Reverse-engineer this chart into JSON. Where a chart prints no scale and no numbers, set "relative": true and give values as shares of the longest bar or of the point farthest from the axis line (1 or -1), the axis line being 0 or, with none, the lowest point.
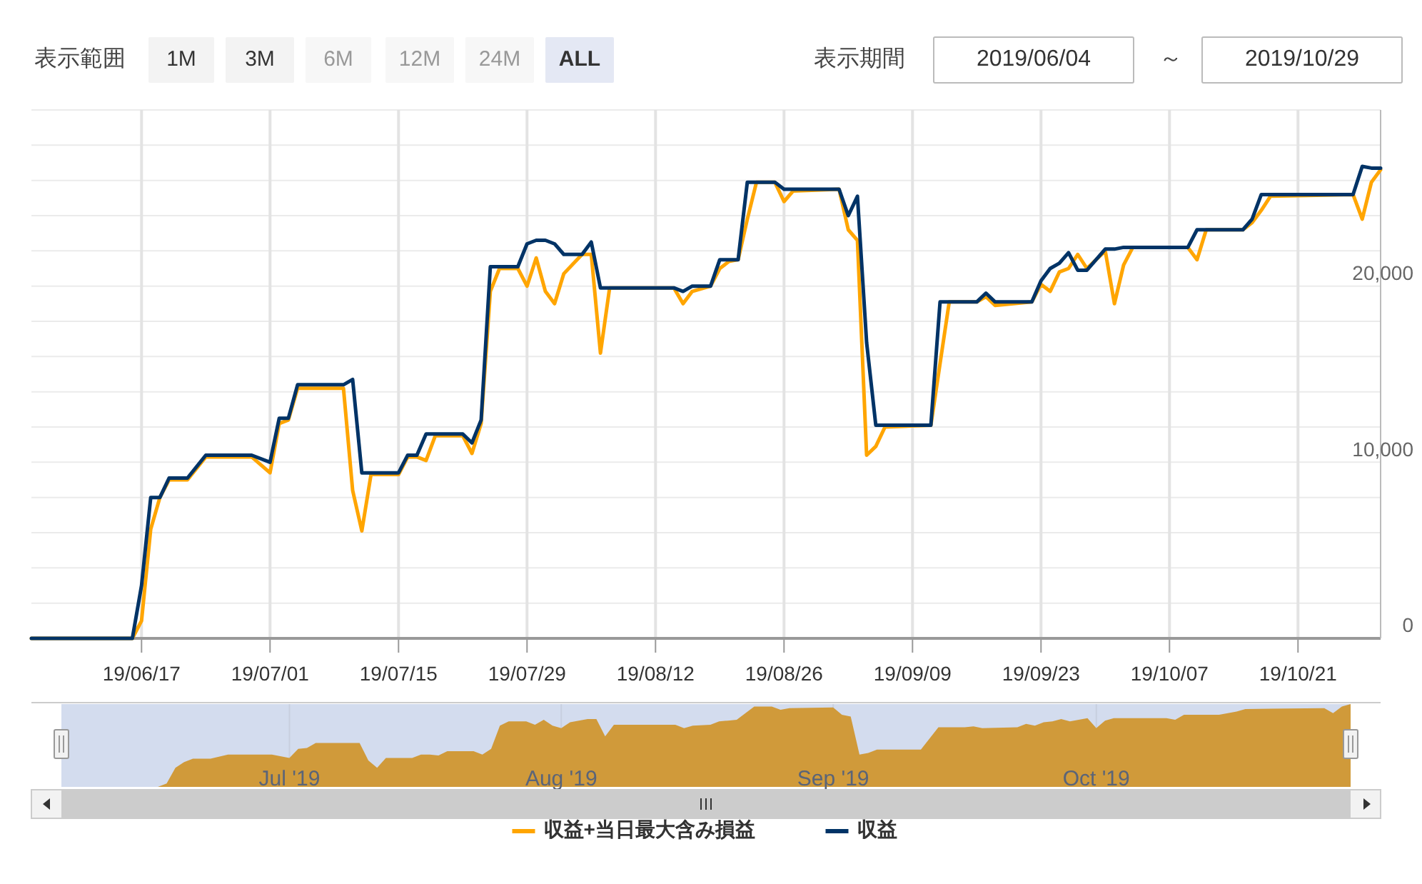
{
  "chart_data": [
    {
      "type": "line",
      "annotations": [
        "表示範囲",
        "1M",
        "3M",
        "6M",
        "12M",
        "24M",
        "ALL",
        "表示期間",
        "2019/06/04",
        "～",
        "2019/10/29"
      ],
      "xlim": [
        "2019-06-05",
        "2019-10-30"
      ],
      "xticks": [
        {
          "value": "2019-06-17",
          "label": "19/06/17"
        },
        {
          "value": "2019-07-01",
          "label": "19/07/01"
        },
        {
          "value": "2019-07-15",
          "label": "19/07/15"
        },
        {
          "value": "2019-07-29",
          "label": "19/07/29"
        },
        {
          "value": "2019-08-12",
          "label": "19/08/12"
        },
        {
          "value": "2019-08-26",
          "label": "19/08/26"
        },
        {
          "value": "2019-09-09",
          "label": "19/09/09"
        },
        {
          "value": "2019-09-23",
          "label": "19/09/23"
        },
        {
          "value": "2019-10-07",
          "label": "19/10/07"
        },
        {
          "value": "2019-10-21",
          "label": "19/10/21"
        }
      ],
      "ylim": [
        0,
        30000
      ],
      "yticks": [
        0,
        {
          "value": 2000,
          "label": null
        },
        {
          "value": 4000,
          "label": null
        },
        {
          "value": 6000,
          "label": null
        },
        {
          "value": 8000,
          "label": null
        },
        {
          "value": 10000,
          "label": "10,000"
        },
        {
          "value": 12000,
          "label": null
        },
        {
          "value": 14000,
          "label": null
        },
        {
          "value": 16000,
          "label": null
        },
        {
          "value": 18000,
          "label": null
        },
        {
          "value": 20000,
          "label": "20,000"
        },
        {
          "value": 22000,
          "label": null
        },
        {
          "value": 24000,
          "label": null
        },
        {
          "value": 26000,
          "label": null
        },
        {
          "value": 28000,
          "label": null
        },
        {
          "value": 30000,
          "label": null
        }
      ],
      "grid": true,
      "legend": "bottom",
      "line_style": "solid",
      "series": [
        {
          "name": "収益+当日最大含み損益",
          "color": "#ffa500",
          "x": [
            "2019-06-05",
            "2019-06-16",
            "2019-06-17",
            "2019-06-18",
            "2019-06-19",
            "2019-06-20",
            "2019-06-22",
            "2019-06-24",
            "2019-06-29",
            "2019-07-01",
            "2019-07-02",
            "2019-07-03",
            "2019-07-04",
            "2019-07-09",
            "2019-07-10",
            "2019-07-11",
            "2019-07-12",
            "2019-07-15",
            "2019-07-16",
            "2019-07-17",
            "2019-07-18",
            "2019-07-19",
            "2019-07-22",
            "2019-07-23",
            "2019-07-24",
            "2019-07-25",
            "2019-07-26",
            "2019-07-28",
            "2019-07-29",
            "2019-07-30",
            "2019-07-31",
            "2019-08-01",
            "2019-08-02",
            "2019-08-04",
            "2019-08-05",
            "2019-08-06",
            "2019-08-07",
            "2019-08-14",
            "2019-08-15",
            "2019-08-16",
            "2019-08-18",
            "2019-08-19",
            "2019-08-20",
            "2019-08-21",
            "2019-08-22",
            "2019-08-23",
            "2019-08-25",
            "2019-08-26",
            "2019-08-27",
            "2019-09-01",
            "2019-09-02",
            "2019-09-03",
            "2019-09-04",
            "2019-09-05",
            "2019-09-06",
            "2019-09-11",
            "2019-09-13",
            "2019-09-16",
            "2019-09-17",
            "2019-09-18",
            "2019-09-22",
            "2019-09-23",
            "2019-09-24",
            "2019-09-25",
            "2019-09-26",
            "2019-09-27",
            "2019-09-28",
            "2019-09-30",
            "2019-10-01",
            "2019-10-02",
            "2019-10-03",
            "2019-10-09",
            "2019-10-10",
            "2019-10-11",
            "2019-10-15",
            "2019-10-16",
            "2019-10-17",
            "2019-10-18",
            "2019-10-27",
            "2019-10-28",
            "2019-10-29",
            "2019-10-30"
          ],
          "values": [
            0,
            0,
            1000,
            6200,
            8000,
            9000,
            9000,
            10300,
            10300,
            9400,
            12200,
            12400,
            14200,
            14200,
            8400,
            6100,
            9300,
            9300,
            10300,
            10300,
            10100,
            11500,
            11500,
            10500,
            12200,
            19700,
            21000,
            21000,
            20000,
            21600,
            19700,
            19000,
            20700,
            21800,
            21800,
            16200,
            19900,
            19900,
            19000,
            19700,
            20000,
            21000,
            21400,
            21500,
            23800,
            25900,
            25900,
            24800,
            25400,
            25500,
            23200,
            22600,
            10400,
            10900,
            12000,
            12100,
            19100,
            19100,
            19400,
            18900,
            19100,
            20100,
            19700,
            20800,
            21000,
            21800,
            21000,
            22000,
            19000,
            21200,
            22200,
            22200,
            21500,
            23200,
            23200,
            23600,
            24300,
            25100,
            25200,
            23800,
            25900,
            26600
          ]
        },
        {
          "name": "収益",
          "color": "#003366",
          "x": [
            "2019-06-05",
            "2019-06-16",
            "2019-06-17",
            "2019-06-18",
            "2019-06-19",
            "2019-06-20",
            "2019-06-22",
            "2019-06-24",
            "2019-06-29",
            "2019-07-01",
            "2019-07-02",
            "2019-07-03",
            "2019-07-04",
            "2019-07-09",
            "2019-07-10",
            "2019-07-11",
            "2019-07-15",
            "2019-07-16",
            "2019-07-17",
            "2019-07-18",
            "2019-07-22",
            "2019-07-23",
            "2019-07-24",
            "2019-07-25",
            "2019-07-28",
            "2019-07-29",
            "2019-07-30",
            "2019-07-31",
            "2019-08-01",
            "2019-08-02",
            "2019-08-04",
            "2019-08-05",
            "2019-08-06",
            "2019-08-14",
            "2019-08-15",
            "2019-08-16",
            "2019-08-18",
            "2019-08-19",
            "2019-08-21",
            "2019-08-22",
            "2019-08-25",
            "2019-08-26",
            "2019-09-01",
            "2019-09-02",
            "2019-09-03",
            "2019-09-04",
            "2019-09-05",
            "2019-09-11",
            "2019-09-12",
            "2019-09-16",
            "2019-09-17",
            "2019-09-18",
            "2019-09-22",
            "2019-09-23",
            "2019-09-24",
            "2019-09-25",
            "2019-09-26",
            "2019-09-27",
            "2019-09-28",
            "2019-09-30",
            "2019-10-01",
            "2019-10-02",
            "2019-10-09",
            "2019-10-10",
            "2019-10-15",
            "2019-10-16",
            "2019-10-17",
            "2019-10-27",
            "2019-10-28",
            "2019-10-29",
            "2019-10-30"
          ],
          "values": [
            0,
            0,
            3000,
            8000,
            8000,
            9100,
            9100,
            10400,
            10400,
            10000,
            12500,
            12500,
            14400,
            14400,
            14700,
            9400,
            9400,
            10400,
            10400,
            11600,
            11600,
            11100,
            12400,
            21100,
            21100,
            22400,
            22600,
            22600,
            22400,
            21800,
            21800,
            22500,
            19900,
            19900,
            19700,
            20000,
            20000,
            21500,
            21500,
            25900,
            25900,
            25500,
            25500,
            24000,
            25100,
            16800,
            12100,
            12100,
            19100,
            19100,
            19600,
            19100,
            19100,
            20300,
            21000,
            21300,
            21900,
            20900,
            20900,
            22100,
            22100,
            22200,
            22200,
            23200,
            23200,
            23800,
            25200,
            25200,
            26800,
            26700,
            26700
          ]
        }
      ]
    },
    {
      "type": "area",
      "relative": true,
      "color": "#d09a3a",
      "grid": "x",
      "xlim": [
        "2019-06-05",
        "2019-10-30"
      ],
      "xticks": [
        {
          "value": "2019-07-01",
          "label": "Jul '19"
        },
        {
          "value": "2019-08-01",
          "label": "Aug '19"
        },
        {
          "value": "2019-09-01",
          "label": "Sep '19"
        },
        {
          "value": "2019-10-01",
          "label": "Oct '19"
        }
      ],
      "x": [
        "2019-06-05",
        "2019-06-16",
        "2019-06-17",
        "2019-06-18",
        "2019-06-19",
        "2019-06-20",
        "2019-06-22",
        "2019-06-24",
        "2019-06-29",
        "2019-07-01",
        "2019-07-02",
        "2019-07-03",
        "2019-07-04",
        "2019-07-09",
        "2019-07-10",
        "2019-07-11",
        "2019-07-12",
        "2019-07-15",
        "2019-07-16",
        "2019-07-17",
        "2019-07-18",
        "2019-07-19",
        "2019-07-22",
        "2019-07-23",
        "2019-07-24",
        "2019-07-25",
        "2019-07-26",
        "2019-07-28",
        "2019-07-29",
        "2019-07-30",
        "2019-07-31",
        "2019-08-01",
        "2019-08-02",
        "2019-08-04",
        "2019-08-05",
        "2019-08-06",
        "2019-08-07",
        "2019-08-14",
        "2019-08-15",
        "2019-08-16",
        "2019-08-18",
        "2019-08-19",
        "2019-08-20",
        "2019-08-21",
        "2019-08-22",
        "2019-08-23",
        "2019-08-25",
        "2019-08-26",
        "2019-08-27",
        "2019-09-01",
        "2019-09-02",
        "2019-09-03",
        "2019-09-04",
        "2019-09-05",
        "2019-09-06",
        "2019-09-11",
        "2019-09-13",
        "2019-09-16",
        "2019-09-17",
        "2019-09-18",
        "2019-09-22",
        "2019-09-23",
        "2019-09-24",
        "2019-09-25",
        "2019-09-26",
        "2019-09-27",
        "2019-09-28",
        "2019-09-30",
        "2019-10-01",
        "2019-10-02",
        "2019-10-03",
        "2019-10-09",
        "2019-10-10",
        "2019-10-11",
        "2019-10-15",
        "2019-10-16",
        "2019-10-17",
        "2019-10-18",
        "2019-10-27",
        "2019-10-28",
        "2019-10-29",
        "2019-10-30"
      ],
      "values": [
        0,
        0,
        0.04,
        0.23,
        0.3,
        0.34,
        0.34,
        0.39,
        0.39,
        0.35,
        0.46,
        0.47,
        0.53,
        0.53,
        0.32,
        0.23,
        0.35,
        0.35,
        0.39,
        0.39,
        0.38,
        0.43,
        0.43,
        0.39,
        0.46,
        0.74,
        0.79,
        0.79,
        0.75,
        0.81,
        0.74,
        0.71,
        0.78,
        0.82,
        0.82,
        0.61,
        0.75,
        0.75,
        0.71,
        0.74,
        0.75,
        0.79,
        0.8,
        0.81,
        0.89,
        0.97,
        0.97,
        0.93,
        0.95,
        0.96,
        0.87,
        0.85,
        0.39,
        0.41,
        0.45,
        0.45,
        0.72,
        0.72,
        0.73,
        0.71,
        0.72,
        0.76,
        0.74,
        0.78,
        0.79,
        0.82,
        0.79,
        0.83,
        0.71,
        0.8,
        0.83,
        0.83,
        0.81,
        0.87,
        0.87,
        0.89,
        0.91,
        0.94,
        0.95,
        0.89,
        0.97,
        1
      ]
    }
  ]
}
